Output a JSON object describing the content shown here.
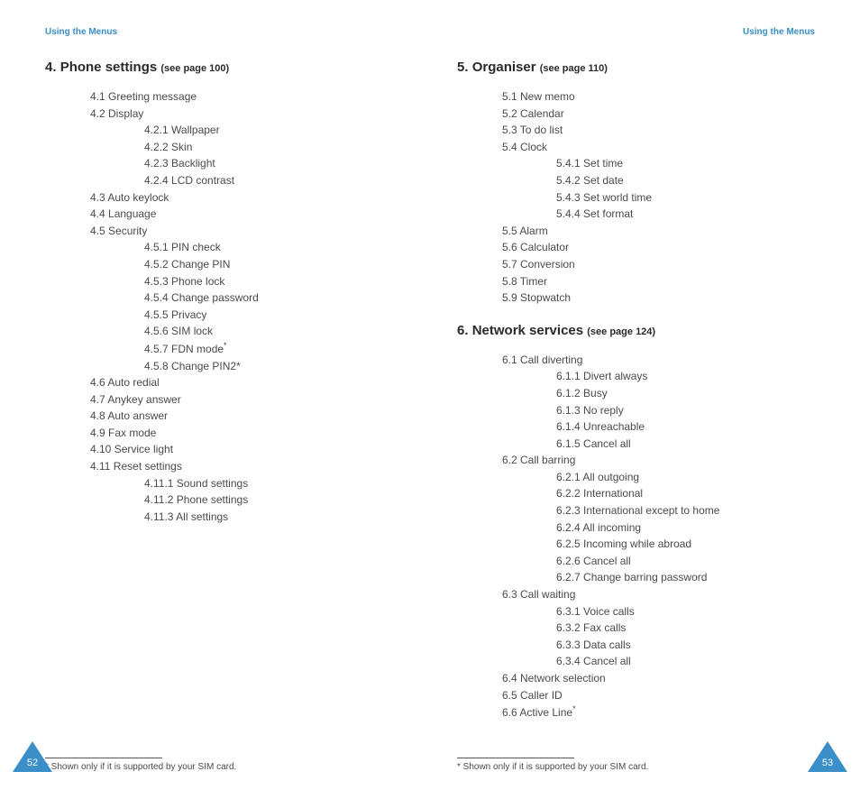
{
  "colors": {
    "accent": "#3a8fc8",
    "text": "#4a4a4a",
    "heading": "#2a2a2a",
    "background": "#ffffff"
  },
  "typography": {
    "body_fontsize": 12,
    "header_fontsize": 10,
    "title_fontsize": 15,
    "footnote_fontsize": 10,
    "font_family": "Verdana"
  },
  "left": {
    "header": "Using the Menus",
    "page_number": "52",
    "section": {
      "num": "4.",
      "title": "Phone settings",
      "see": "(see page 100)"
    },
    "items": {
      "i1": "4.1  Greeting message",
      "i2": "4.2  Display",
      "i2_1": "4.2.1  Wallpaper",
      "i2_2": "4.2.2  Skin",
      "i2_3": "4.2.3  Backlight",
      "i2_4": "4.2.4  LCD contrast",
      "i3": "4.3  Auto keylock",
      "i4": "4.4  Language",
      "i5": "4.5  Security",
      "i5_1": "4.5.1  PIN check",
      "i5_2": "4.5.2  Change PIN",
      "i5_3": "4.5.3  Phone lock",
      "i5_4": "4.5.4  Change password",
      "i5_5": "4.5.5  Privacy",
      "i5_6": "4.5.6  SIM lock",
      "i5_7": "4.5.7  FDN mode",
      "i5_8": "4.5.8  Change PIN2*",
      "i6": "4.6  Auto redial",
      "i7": "4.7  Anykey answer",
      "i8": "4.8  Auto answer",
      "i9": "4.9  Fax mode",
      "i10": "4.10  Service light",
      "i11": "4.11  Reset settings",
      "i11_1": "4.11.1  Sound settings",
      "i11_2": "4.11.2  Phone settings",
      "i11_3": "4.11.3  All settings"
    },
    "footnote": "* Shown only if it is supported by your SIM card."
  },
  "right": {
    "header": "Using the Menus",
    "page_number": "53",
    "section5": {
      "num": "5.",
      "title": "Organiser",
      "see": "(see page 110)"
    },
    "s5": {
      "i1": "5.1  New memo",
      "i2": "5.2  Calendar",
      "i3": "5.3  To do list",
      "i4": "5.4  Clock",
      "i4_1": "5.4.1  Set time",
      "i4_2": "5.4.2  Set date",
      "i4_3": "5.4.3  Set world time",
      "i4_4": "5.4.4  Set format",
      "i5": "5.5  Alarm",
      "i6": "5.6  Calculator",
      "i7": "5.7  Conversion",
      "i8": "5.8  Timer",
      "i9": "5.9  Stopwatch"
    },
    "section6": {
      "num": "6.",
      "title": "Network services",
      "see": "(see page 124)"
    },
    "s6": {
      "i1": "6.1  Call diverting",
      "i1_1": "6.1.1  Divert always",
      "i1_2": "6.1.2  Busy",
      "i1_3": "6.1.3  No reply",
      "i1_4": "6.1.4  Unreachable",
      "i1_5": "6.1.5  Cancel all",
      "i2": "6.2  Call barring",
      "i2_1": "6.2.1  All outgoing",
      "i2_2": "6.2.2  International",
      "i2_3": "6.2.3  International except to home",
      "i2_4": "6.2.4  All incoming",
      "i2_5": "6.2.5  Incoming while abroad",
      "i2_6": "6.2.6  Cancel all",
      "i2_7": "6.2.7  Change barring password",
      "i3": "6.3  Call waiting",
      "i3_1": "6.3.1  Voice calls",
      "i3_2": "6.3.2  Fax calls",
      "i3_3": "6.3.3  Data calls",
      "i3_4": "6.3.4  Cancel all",
      "i4": "6.4  Network selection",
      "i5": "6.5  Caller ID",
      "i6": "6.6  Active Line"
    },
    "footnote": "* Shown only if it is supported by your SIM card."
  },
  "asterisk": "*"
}
